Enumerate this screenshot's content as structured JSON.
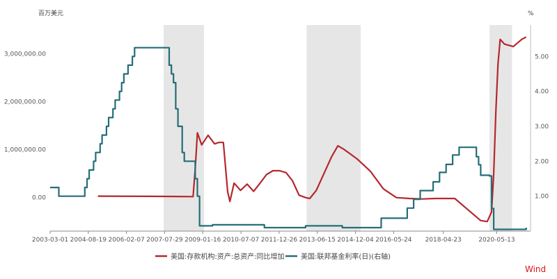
{
  "chart_data": {
    "type": "line",
    "left_unit": "百万美元",
    "right_unit": "%",
    "x_ticks": [
      "2003-03-01",
      "2004-08-19",
      "2006-02-07",
      "2007-07-29",
      "2009-01-16",
      "2010-07-07",
      "2011-12-26",
      "2013-06-15",
      "2014-12-04",
      "2016-05-24",
      "2018-04-23",
      "2020-05-13"
    ],
    "x_range": [
      "2003-03-01",
      "2021-09-01"
    ],
    "y_left": {
      "min": -700000,
      "max": 3600000,
      "ticks": [
        "0.00",
        "1,000,000.00",
        "2,000,000.00",
        "3,000,000.00"
      ],
      "tick_values": [
        0,
        1000000,
        2000000,
        3000000
      ]
    },
    "y_right": {
      "min": 0.0,
      "max": 5.9,
      "ticks": [
        "1.00",
        "2.00",
        "3.00",
        "4.00",
        "5.00"
      ],
      "tick_values": [
        1,
        2,
        3,
        4,
        5
      ]
    },
    "recession_shading": [
      [
        "2007-07-15",
        "2009-02-01"
      ],
      [
        "2013-01-15",
        "2015-02-15"
      ],
      [
        "2020-02-01",
        "2020-12-15"
      ]
    ],
    "series": [
      {
        "name": "美国:存款机构:资产:总资产:同比增加",
        "axis": "left",
        "color": "#b5272d",
        "points": [
          [
            "2005-01-01",
            30000
          ],
          [
            "2007-01-01",
            25000
          ],
          [
            "2008-09-01",
            20000
          ],
          [
            "2008-10-01",
            600000
          ],
          [
            "2008-11-01",
            1350000
          ],
          [
            "2009-01-01",
            1100000
          ],
          [
            "2009-04-01",
            1300000
          ],
          [
            "2009-07-01",
            1120000
          ],
          [
            "2009-09-01",
            1150000
          ],
          [
            "2009-11-01",
            1150000
          ],
          [
            "2010-01-01",
            120000
          ],
          [
            "2010-02-01",
            -80000
          ],
          [
            "2010-04-01",
            300000
          ],
          [
            "2010-07-01",
            150000
          ],
          [
            "2010-10-01",
            280000
          ],
          [
            "2011-01-01",
            130000
          ],
          [
            "2011-04-01",
            300000
          ],
          [
            "2011-07-01",
            480000
          ],
          [
            "2011-10-01",
            560000
          ],
          [
            "2012-01-01",
            560000
          ],
          [
            "2012-04-01",
            520000
          ],
          [
            "2012-07-01",
            350000
          ],
          [
            "2012-10-01",
            50000
          ],
          [
            "2013-01-01",
            0
          ],
          [
            "2013-03-01",
            -20000
          ],
          [
            "2013-06-01",
            150000
          ],
          [
            "2013-09-01",
            450000
          ],
          [
            "2014-01-01",
            850000
          ],
          [
            "2014-04-01",
            1080000
          ],
          [
            "2014-07-01",
            1000000
          ],
          [
            "2015-01-01",
            800000
          ],
          [
            "2015-07-01",
            550000
          ],
          [
            "2016-01-01",
            180000
          ],
          [
            "2016-07-01",
            0
          ],
          [
            "2017-01-01",
            -20000
          ],
          [
            "2017-07-01",
            -30000
          ],
          [
            "2018-01-01",
            -20000
          ],
          [
            "2018-04-01",
            -20000
          ],
          [
            "2018-10-01",
            -20000
          ],
          [
            "2019-04-01",
            -250000
          ],
          [
            "2019-10-01",
            -480000
          ],
          [
            "2020-01-01",
            -500000
          ],
          [
            "2020-03-01",
            -300000
          ],
          [
            "2020-04-01",
            500000
          ],
          [
            "2020-05-01",
            1800000
          ],
          [
            "2020-06-01",
            2800000
          ],
          [
            "2020-07-01",
            3300000
          ],
          [
            "2020-09-01",
            3200000
          ],
          [
            "2021-01-01",
            3150000
          ],
          [
            "2021-05-01",
            3300000
          ],
          [
            "2021-07-01",
            3350000
          ]
        ]
      },
      {
        "name": "美国:联邦基金利率(日)(右轴)",
        "axis": "right",
        "color": "#256d78",
        "points": [
          [
            "2003-03-01",
            1.25
          ],
          [
            "2003-06-01",
            1.25
          ],
          [
            "2003-07-01",
            1.0
          ],
          [
            "2004-06-01",
            1.0
          ],
          [
            "2004-07-01",
            1.25
          ],
          [
            "2004-08-01",
            1.5
          ],
          [
            "2004-09-01",
            1.75
          ],
          [
            "2004-11-01",
            2.0
          ],
          [
            "2004-12-01",
            2.25
          ],
          [
            "2005-02-01",
            2.5
          ],
          [
            "2005-03-01",
            2.75
          ],
          [
            "2005-05-01",
            3.0
          ],
          [
            "2005-06-01",
            3.25
          ],
          [
            "2005-08-01",
            3.5
          ],
          [
            "2005-09-01",
            3.75
          ],
          [
            "2005-11-01",
            4.0
          ],
          [
            "2005-12-01",
            4.25
          ],
          [
            "2006-01-01",
            4.5
          ],
          [
            "2006-03-01",
            4.75
          ],
          [
            "2006-05-01",
            5.0
          ],
          [
            "2006-06-01",
            5.25
          ],
          [
            "2007-09-01",
            5.25
          ],
          [
            "2007-10-01",
            4.75
          ],
          [
            "2007-11-01",
            4.5
          ],
          [
            "2007-12-01",
            4.25
          ],
          [
            "2008-01-01",
            3.5
          ],
          [
            "2008-02-01",
            3.0
          ],
          [
            "2008-04-01",
            2.25
          ],
          [
            "2008-05-01",
            2.0
          ],
          [
            "2008-10-01",
            1.5
          ],
          [
            "2008-11-01",
            1.0
          ],
          [
            "2008-12-01",
            0.15
          ],
          [
            "2009-06-01",
            0.18
          ],
          [
            "2011-06-01",
            0.1
          ],
          [
            "2013-01-01",
            0.15
          ],
          [
            "2014-06-01",
            0.1
          ],
          [
            "2015-12-01",
            0.37
          ],
          [
            "2016-12-01",
            0.66
          ],
          [
            "2017-03-01",
            0.91
          ],
          [
            "2017-06-01",
            1.16
          ],
          [
            "2017-12-01",
            1.41
          ],
          [
            "2018-03-01",
            1.68
          ],
          [
            "2018-06-01",
            1.91
          ],
          [
            "2018-09-01",
            2.18
          ],
          [
            "2018-12-01",
            2.4
          ],
          [
            "2019-07-01",
            2.4
          ],
          [
            "2019-08-01",
            2.13
          ],
          [
            "2019-09-01",
            1.9
          ],
          [
            "2019-10-01",
            1.6
          ],
          [
            "2020-02-01",
            1.58
          ],
          [
            "2020-03-01",
            0.65
          ],
          [
            "2020-04-01",
            0.05
          ],
          [
            "2021-07-01",
            0.1
          ]
        ]
      }
    ],
    "legend_position": "bottom",
    "watermark": "Wind"
  }
}
